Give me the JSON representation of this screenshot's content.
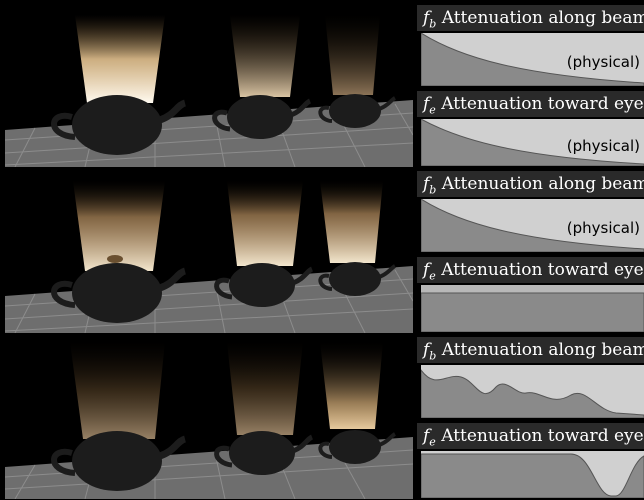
{
  "rows": [
    {
      "beam": {
        "title_sym": "f",
        "title_sub": "b",
        "title_text": "Attenuation along beam",
        "note": "(physical)"
      },
      "eye": {
        "title_sym": "f",
        "title_sub": "e",
        "title_text": "Attenuation toward eye",
        "note": "(physical)"
      }
    },
    {
      "beam": {
        "title_sym": "f",
        "title_sub": "b",
        "title_text": "Attenuation along beam",
        "note": "(physical)"
      },
      "eye": {
        "title_sym": "f",
        "title_sub": "e",
        "title_text": "Attenuation toward eye",
        "note": ""
      }
    },
    {
      "beam": {
        "title_sym": "f",
        "title_sub": "b",
        "title_text": "Attenuation along beam",
        "note": ""
      },
      "eye": {
        "title_sym": "f",
        "title_sub": "e",
        "title_text": "Attenuation toward eye",
        "note": ""
      }
    }
  ],
  "colors": {
    "plot_bg": "#d0d0d0",
    "curve_fill": "#8a8a8a",
    "title_bg": "#2a2a2a",
    "glow": "#ffe2b8",
    "teapot": "#1c1c1c",
    "floor": "#6e6e6e"
  }
}
